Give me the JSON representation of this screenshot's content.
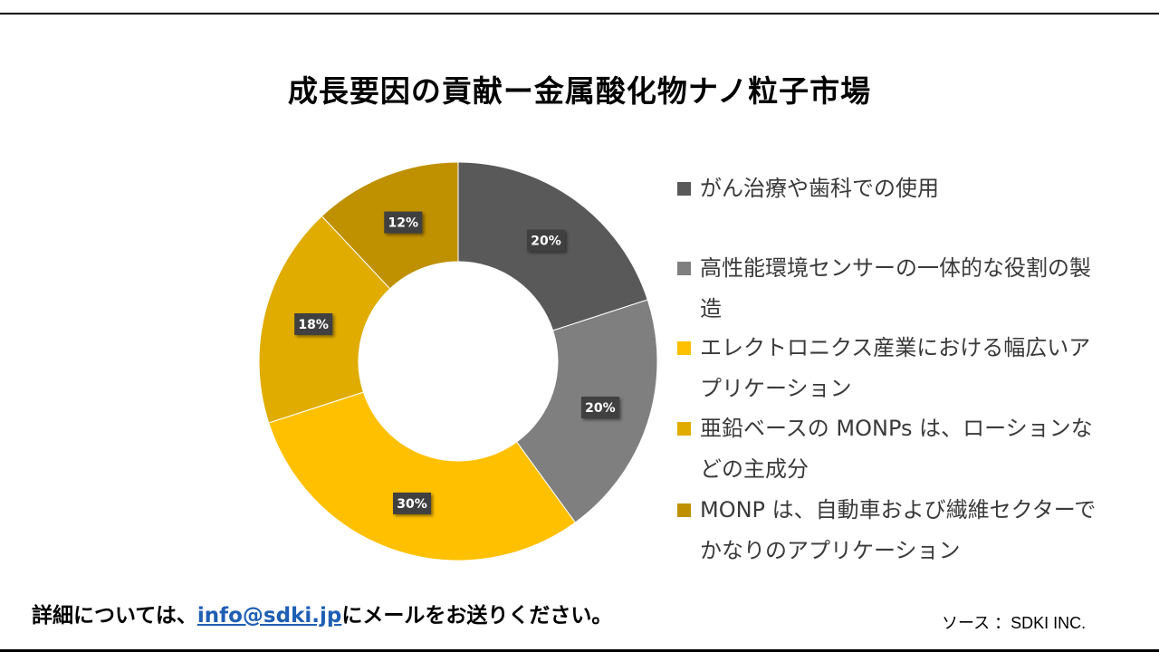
{
  "title": "成長要因の貢献ー金属酸化物ナノ粒子市場",
  "footer": {
    "contact_prefix": "詳細については、",
    "contact_email": "info@sdki.jp",
    "contact_suffix": "にメールをお送りください。",
    "source": "ソース ：SDKI INC."
  },
  "chart_data": {
    "type": "pie",
    "variant": "donut",
    "title": "成長要因の貢献ー金属酸化物ナノ粒子市場",
    "legend_position": "right",
    "categories": [
      "がん治療や歯科での使用",
      "高性能環境センサーの一体的な役割の製造",
      "エレクトロニクス産業における幅広いアプリケーション",
      "亜鉛ベースの MONPs は、ローションなどの主成分",
      "MONP は、自動車および繊維セクターでかなりのアプリケーション"
    ],
    "values": [
      20,
      20,
      30,
      18,
      12
    ],
    "data_labels": [
      "20%",
      "20%",
      "30%",
      "18%",
      "12%"
    ],
    "colors": [
      "#595959",
      "#7f7f7f",
      "#ffc000",
      "#e0ac00",
      "#bf9000"
    ]
  }
}
